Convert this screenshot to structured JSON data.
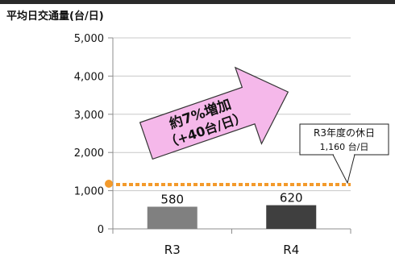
{
  "chart_data": {
    "type": "bar",
    "ylabel": "平均日交通量(台/日)",
    "ylim": [
      0,
      5000
    ],
    "yticks": [
      0,
      1000,
      2000,
      3000,
      4000,
      5000
    ],
    "ytick_labels": [
      "0",
      "1,000",
      "2,000",
      "3,000",
      "4,000",
      "5,000"
    ],
    "grid": true,
    "categories": [
      "R3",
      "R4"
    ],
    "values": [
      580,
      620
    ],
    "data_labels": [
      "580",
      "620"
    ],
    "bar_colors": [
      "#808080",
      "#3f3f3f"
    ],
    "reference_line": {
      "value": 1160,
      "color": "#f39a2b",
      "style": "dotted"
    },
    "annotations": {
      "arrow_line1": "約7%増加",
      "arrow_line2": "（+40台/日）",
      "arrow_fill": "#f5b8ea",
      "callout_line1": "R3年度の休日",
      "callout_line2": "1,160 台/日"
    }
  }
}
